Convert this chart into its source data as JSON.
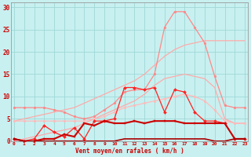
{
  "background_color": "#c8f0f0",
  "grid_color": "#a0d8d8",
  "xlabel": "Vent moyen/en rafales ( km/h )",
  "ylim": [
    0,
    31
  ],
  "xlim": [
    -0.3,
    23.3
  ],
  "yticks": [
    0,
    5,
    10,
    15,
    20,
    25,
    30
  ],
  "x_ticks": [
    0,
    1,
    2,
    3,
    4,
    5,
    6,
    7,
    8,
    9,
    10,
    11,
    12,
    13,
    14,
    15,
    16,
    17,
    18,
    19,
    20,
    21,
    22,
    23
  ],
  "lines": [
    {
      "color": "#ffaaaa",
      "linewidth": 0.9,
      "marker": null,
      "zorder": 2,
      "data_x": [
        0,
        1,
        2,
        3,
        4,
        5,
        6,
        7,
        8,
        9,
        10,
        11,
        12,
        13,
        14,
        15,
        16,
        17,
        18,
        19,
        20,
        21,
        22,
        23
      ],
      "data_y": [
        4.5,
        5.0,
        5.5,
        6.0,
        6.5,
        7.0,
        7.5,
        8.5,
        9.5,
        10.5,
        11.5,
        12.5,
        13.5,
        15.0,
        17.0,
        19.0,
        20.5,
        21.5,
        22.0,
        22.5,
        22.5,
        22.5,
        22.5,
        22.5
      ]
    },
    {
      "color": "#ffaaaa",
      "linewidth": 0.9,
      "marker": null,
      "zorder": 2,
      "data_x": [
        0,
        1,
        2,
        3,
        4,
        5,
        6,
        7,
        8,
        9,
        10,
        11,
        12,
        13,
        14,
        15,
        16,
        17,
        18,
        19,
        20,
        21,
        22,
        23
      ],
      "data_y": [
        0.0,
        0.5,
        1.0,
        1.5,
        2.0,
        2.5,
        3.0,
        4.0,
        5.0,
        6.0,
        7.0,
        8.0,
        9.0,
        10.5,
        12.5,
        14.0,
        14.5,
        15.0,
        14.5,
        14.0,
        12.0,
        5.0,
        4.0,
        4.0
      ]
    },
    {
      "color": "#ff8888",
      "linewidth": 0.9,
      "marker": "o",
      "markersize": 2.0,
      "zorder": 3,
      "data_x": [
        0,
        1,
        2,
        3,
        4,
        5,
        6,
        7,
        8,
        9,
        10,
        11,
        12,
        13,
        14,
        15,
        16,
        17,
        18,
        19,
        20,
        21,
        22,
        23
      ],
      "data_y": [
        7.5,
        7.5,
        7.5,
        7.5,
        7.0,
        6.5,
        5.5,
        5.0,
        5.5,
        7.0,
        8.5,
        11.0,
        11.5,
        11.5,
        15.0,
        25.5,
        29.0,
        29.0,
        25.5,
        22.0,
        14.5,
        8.0,
        7.5,
        7.5
      ]
    },
    {
      "color": "#ffbbbb",
      "linewidth": 0.9,
      "marker": "o",
      "markersize": 2.0,
      "zorder": 3,
      "data_x": [
        0,
        1,
        2,
        3,
        4,
        5,
        6,
        7,
        8,
        9,
        10,
        11,
        12,
        13,
        14,
        15,
        16,
        17,
        18,
        19,
        20,
        21,
        22,
        23
      ],
      "data_y": [
        4.5,
        4.5,
        4.5,
        4.5,
        4.5,
        4.5,
        4.5,
        4.5,
        5.0,
        5.5,
        6.5,
        7.5,
        8.0,
        8.5,
        9.0,
        9.5,
        10.0,
        10.5,
        10.0,
        9.0,
        7.0,
        4.5,
        4.0,
        4.0
      ]
    },
    {
      "color": "#ff2222",
      "linewidth": 0.9,
      "marker": "D",
      "markersize": 2.0,
      "zorder": 4,
      "data_x": [
        0,
        1,
        2,
        3,
        4,
        5,
        6,
        7,
        8,
        9,
        10,
        11,
        12,
        13,
        14,
        15,
        16,
        17,
        18,
        19,
        20,
        21,
        22,
        23
      ],
      "data_y": [
        0.5,
        0.0,
        0.5,
        3.5,
        2.0,
        1.0,
        3.0,
        0.5,
        4.5,
        4.5,
        5.0,
        12.0,
        12.0,
        11.5,
        12.0,
        6.5,
        11.5,
        11.0,
        6.5,
        4.5,
        4.5,
        4.0,
        0.5,
        0.5
      ]
    },
    {
      "color": "#cc0000",
      "linewidth": 1.5,
      "marker": "s",
      "markersize": 2.0,
      "zorder": 5,
      "data_x": [
        0,
        1,
        2,
        3,
        4,
        5,
        6,
        7,
        8,
        9,
        10,
        11,
        12,
        13,
        14,
        15,
        16,
        17,
        18,
        19,
        20,
        21,
        22,
        23
      ],
      "data_y": [
        0.5,
        0.0,
        0.0,
        0.5,
        0.5,
        1.5,
        1.0,
        4.0,
        3.5,
        4.5,
        4.0,
        4.0,
        4.5,
        4.0,
        4.5,
        4.5,
        4.5,
        4.0,
        4.0,
        4.0,
        4.0,
        4.0,
        0.5,
        0.5
      ]
    },
    {
      "color": "#aa0000",
      "linewidth": 1.2,
      "marker": null,
      "zorder": 5,
      "data_x": [
        0,
        1,
        2,
        3,
        4,
        5,
        6,
        7,
        8,
        9,
        10,
        11,
        12,
        13,
        14,
        15,
        16,
        17,
        18,
        19,
        20,
        21,
        22,
        23
      ],
      "data_y": [
        0.5,
        0.0,
        0.0,
        0.0,
        0.0,
        0.0,
        0.0,
        0.0,
        0.0,
        0.0,
        0.0,
        0.5,
        0.5,
        0.5,
        0.5,
        0.5,
        0.5,
        0.5,
        0.5,
        0.5,
        0.0,
        0.0,
        0.5,
        0.5
      ]
    }
  ]
}
